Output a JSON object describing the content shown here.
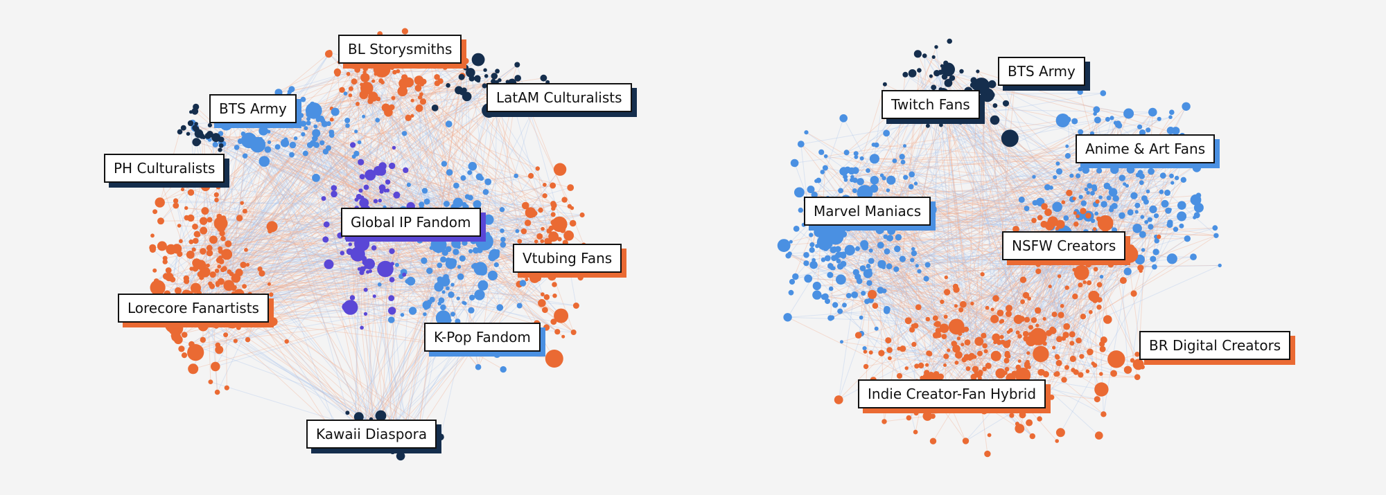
{
  "colors": {
    "background": "#f4f4f4",
    "orange": "#ea6a33",
    "blue": "#4a90e2",
    "navy": "#152e4d",
    "purple": "#5a47d6"
  },
  "graphs": [
    {
      "labels": [
        {
          "text": "BL Storysmiths",
          "color": "orange"
        },
        {
          "text": "LatAM Culturalists",
          "color": "navy"
        },
        {
          "text": "BTS Army",
          "color": "blue"
        },
        {
          "text": "PH Culturalists",
          "color": "navy"
        },
        {
          "text": "Global IP Fandom",
          "color": "purple"
        },
        {
          "text": "Vtubing Fans",
          "color": "orange"
        },
        {
          "text": "Lorecore Fanartists",
          "color": "orange"
        },
        {
          "text": "K-Pop Fandom",
          "color": "blue"
        },
        {
          "text": "Kawaii Diaspora",
          "color": "navy"
        }
      ]
    },
    {
      "labels": [
        {
          "text": "BTS Army",
          "color": "navy"
        },
        {
          "text": "Twitch Fans",
          "color": "navy"
        },
        {
          "text": "Anime & Art Fans",
          "color": "blue"
        },
        {
          "text": "Marvel Maniacs",
          "color": "blue"
        },
        {
          "text": "NSFW Creators",
          "color": "orange"
        },
        {
          "text": "BR Digital Creators",
          "color": "orange"
        },
        {
          "text": "Indie Creator-Fan Hybrid",
          "color": "orange"
        }
      ]
    }
  ]
}
